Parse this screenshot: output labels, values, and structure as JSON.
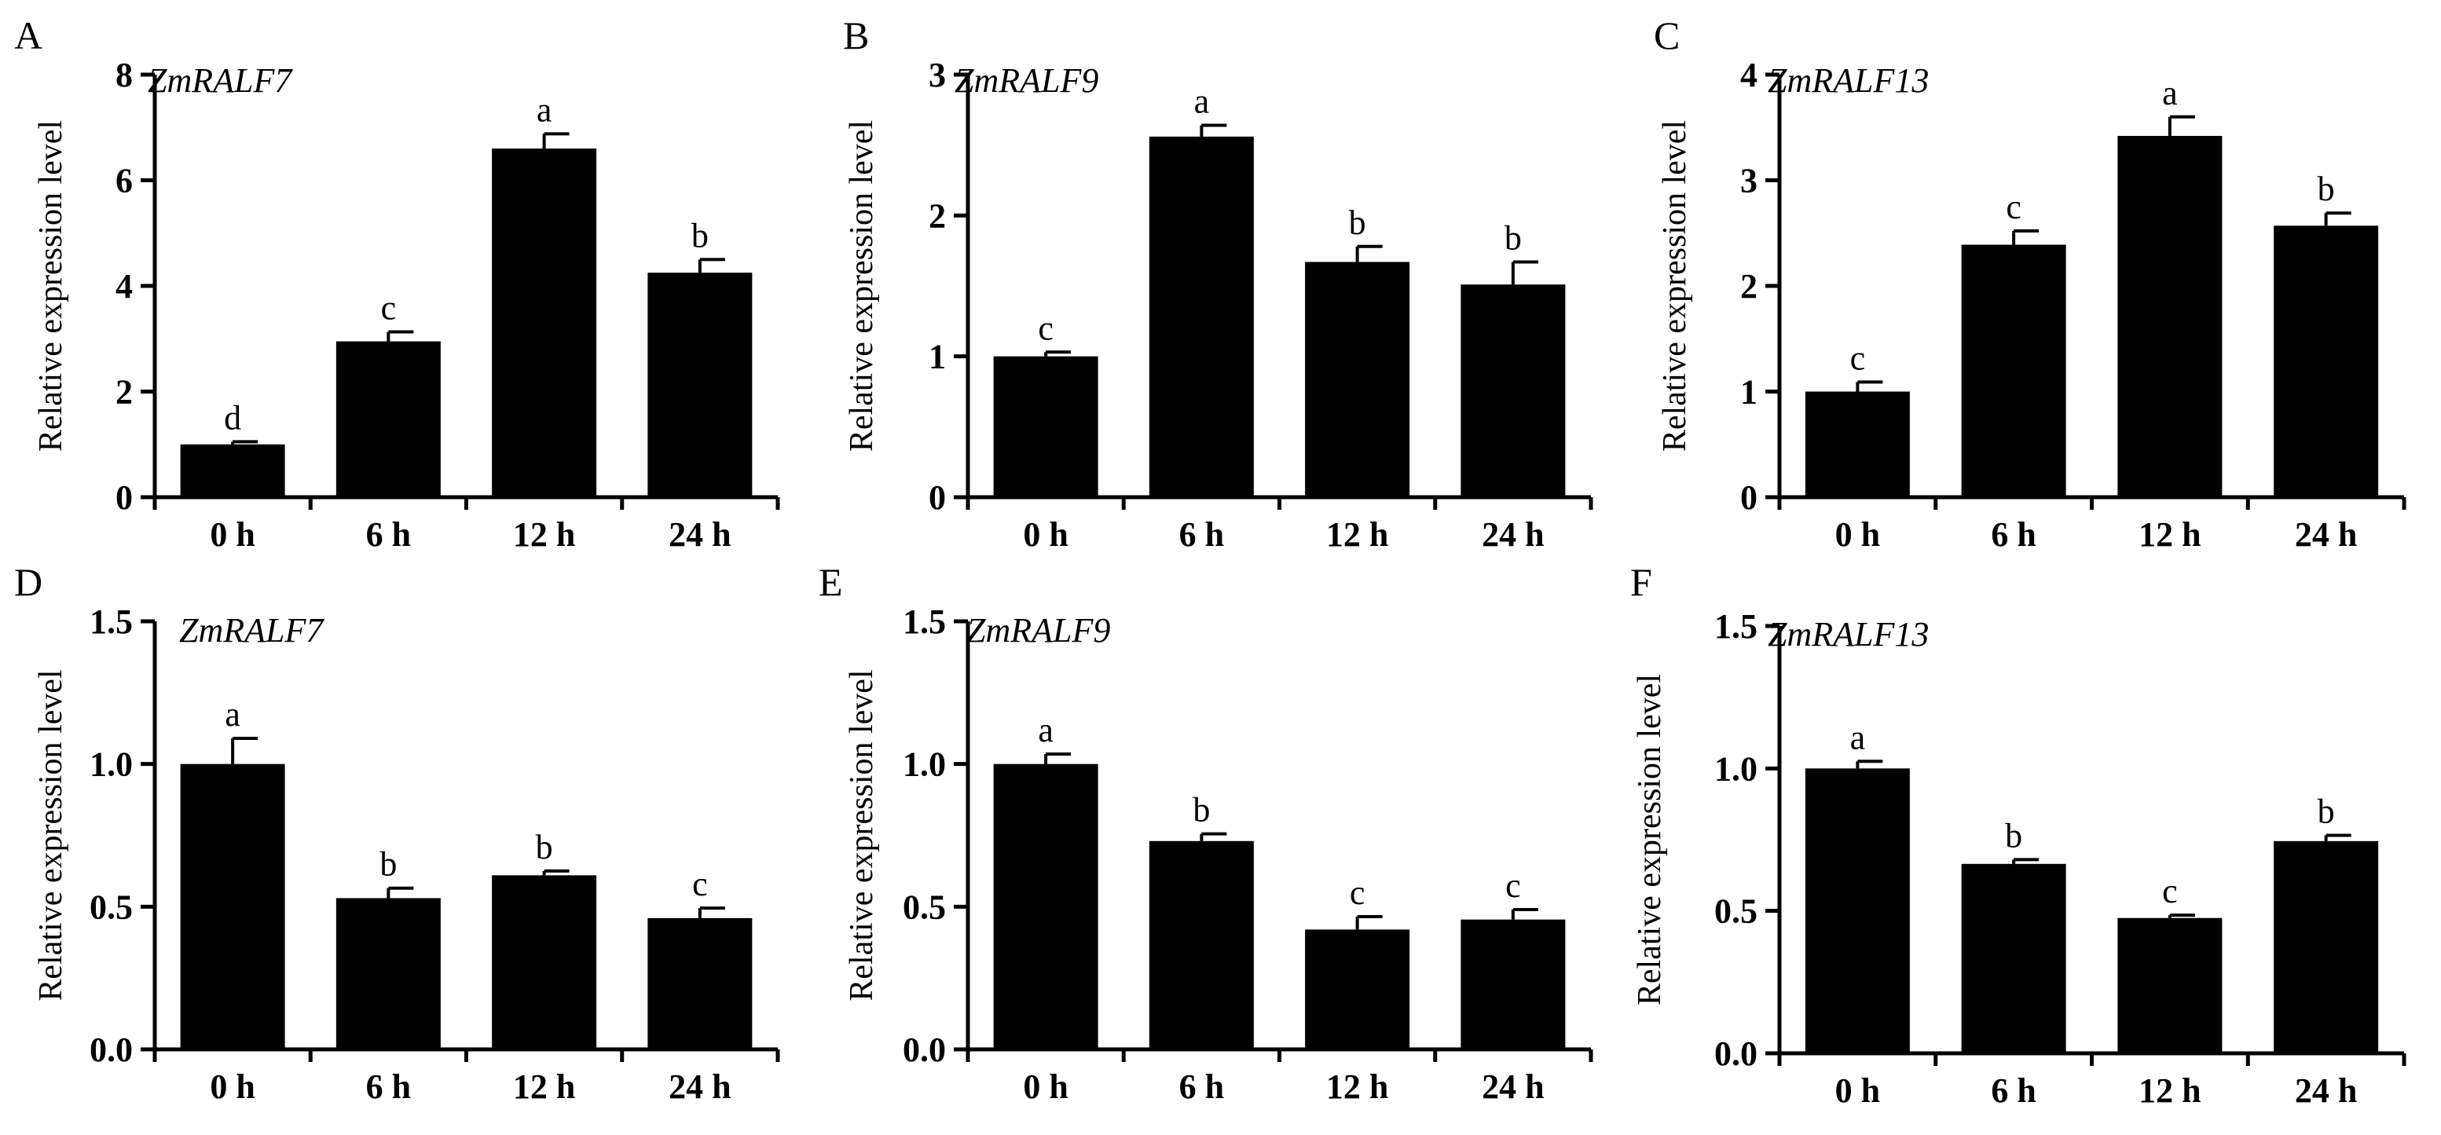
{
  "figure": {
    "ylabel": "Relative expression level"
  },
  "colors": {
    "bar": "#000000",
    "axis": "#000000",
    "background": "#ffffff"
  },
  "chart_data": [
    {
      "type": "bar",
      "panel": "A",
      "title": "ZmRALF7",
      "ylabel": "Relative expression level",
      "categories": [
        "0 h",
        "6 h",
        "12 h",
        "24 h"
      ],
      "values": [
        1.0,
        2.95,
        6.6,
        4.25
      ],
      "errors": [
        0.05,
        0.18,
        0.28,
        0.25
      ],
      "significance": [
        "d",
        "c",
        "a",
        "b"
      ],
      "ylim": [
        0,
        8
      ],
      "yticks": [
        0,
        2,
        4,
        6,
        8
      ],
      "ytick_labels": [
        "0",
        "2",
        "4",
        "6",
        "8"
      ]
    },
    {
      "type": "bar",
      "panel": "B",
      "title": "ZmRALF9",
      "ylabel": "Relative expression level",
      "categories": [
        "0 h",
        "6 h",
        "12 h",
        "24 h"
      ],
      "values": [
        1.0,
        2.56,
        1.67,
        1.51
      ],
      "errors": [
        0.03,
        0.08,
        0.11,
        0.16
      ],
      "significance": [
        "c",
        "a",
        "b",
        "b"
      ],
      "ylim": [
        0,
        3
      ],
      "yticks": [
        0,
        1,
        2,
        3
      ],
      "ytick_labels": [
        "0",
        "1",
        "2",
        "3"
      ]
    },
    {
      "type": "bar",
      "panel": "C",
      "title": "ZmRALF13",
      "ylabel": "Relative expression level",
      "categories": [
        "0 h",
        "6 h",
        "12 h",
        "24 h"
      ],
      "values": [
        1.0,
        2.39,
        3.42,
        2.57
      ],
      "errors": [
        0.09,
        0.13,
        0.18,
        0.12
      ],
      "significance": [
        "c",
        "c",
        "a",
        "b"
      ],
      "ylim": [
        0,
        4
      ],
      "yticks": [
        0,
        1,
        2,
        3,
        4
      ],
      "ytick_labels": [
        "0",
        "1",
        "2",
        "3",
        "4"
      ]
    },
    {
      "type": "bar",
      "panel": "D",
      "title": "ZmRALF7",
      "ylabel": "Relative expression level",
      "categories": [
        "0 h",
        "6 h",
        "12 h",
        "24 h"
      ],
      "values": [
        1.0,
        0.53,
        0.61,
        0.46
      ],
      "errors": [
        0.09,
        0.035,
        0.015,
        0.035
      ],
      "significance": [
        "a",
        "b",
        "b",
        "c"
      ],
      "ylim": [
        0,
        1.5
      ],
      "yticks": [
        0,
        0.5,
        1.0,
        1.5
      ],
      "ytick_labels": [
        "0.0",
        "0.5",
        "1.0",
        "1.5"
      ]
    },
    {
      "type": "bar",
      "panel": "E",
      "title": "ZmRALF9",
      "ylabel": "Relative expression level",
      "categories": [
        "0 h",
        "6 h",
        "12 h",
        "24 h"
      ],
      "values": [
        1.0,
        0.73,
        0.42,
        0.455
      ],
      "errors": [
        0.035,
        0.025,
        0.045,
        0.035
      ],
      "significance": [
        "a",
        "b",
        "c",
        "c"
      ],
      "ylim": [
        0,
        1.5
      ],
      "yticks": [
        0,
        0.5,
        1.0,
        1.5
      ],
      "ytick_labels": [
        "0.0",
        "0.5",
        "1.0",
        "1.5"
      ]
    },
    {
      "type": "bar",
      "panel": "F",
      "title": "ZmRALF13",
      "ylabel": "Relative expression level",
      "categories": [
        "0 h",
        "6 h",
        "12 h",
        "24 h"
      ],
      "values": [
        1.0,
        0.665,
        0.475,
        0.745
      ],
      "errors": [
        0.025,
        0.015,
        0.01,
        0.02
      ],
      "significance": [
        "a",
        "b",
        "c",
        "b"
      ],
      "ylim": [
        0,
        1.5
      ],
      "yticks": [
        0,
        0.5,
        1.0,
        1.5
      ],
      "ytick_labels": [
        "0.0",
        "0.5",
        "1.0",
        "1.5"
      ]
    }
  ]
}
